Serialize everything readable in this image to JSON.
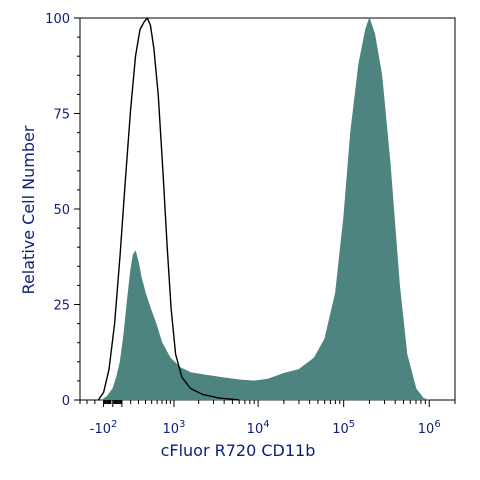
{
  "chart_data": {
    "type": "area",
    "xlabel": "cFluor R720 CD11b",
    "ylabel": "Relative Cell Number",
    "x_scale": "biexponential",
    "xlim": [
      -400,
      2000000
    ],
    "ylim": [
      0,
      100
    ],
    "y_ticks": [
      "0",
      "25",
      "50",
      "75",
      "100"
    ],
    "x_ticks": [
      {
        "base": "-10",
        "exp": "2",
        "value": -100
      },
      {
        "base": "10",
        "exp": "3",
        "value": 1000
      },
      {
        "base": "10",
        "exp": "4",
        "value": 10000
      },
      {
        "base": "10",
        "exp": "5",
        "value": 100000
      },
      {
        "base": "10",
        "exp": "6",
        "value": 1000000
      }
    ],
    "series": [
      {
        "style": "filled",
        "color": "#4e8480",
        "points": [
          [
            -120,
            0
          ],
          [
            -60,
            1
          ],
          [
            0,
            3
          ],
          [
            40,
            6
          ],
          [
            80,
            10
          ],
          [
            120,
            17
          ],
          [
            160,
            26
          ],
          [
            200,
            34
          ],
          [
            230,
            38
          ],
          [
            260,
            39
          ],
          [
            300,
            36
          ],
          [
            340,
            32
          ],
          [
            400,
            28
          ],
          [
            480,
            24
          ],
          [
            580,
            20
          ],
          [
            700,
            15
          ],
          [
            900,
            11
          ],
          [
            1200,
            8.5
          ],
          [
            1600,
            7.2
          ],
          [
            2500,
            6.5
          ],
          [
            4000,
            5.8
          ],
          [
            6000,
            5.3
          ],
          [
            9000,
            5.0
          ],
          [
            13000,
            5.5
          ],
          [
            20000,
            7
          ],
          [
            30000,
            8
          ],
          [
            45000,
            11
          ],
          [
            60000,
            16
          ],
          [
            80000,
            28
          ],
          [
            100000,
            48
          ],
          [
            120000,
            70
          ],
          [
            150000,
            88
          ],
          [
            180000,
            97
          ],
          [
            200000,
            100
          ],
          [
            230000,
            96
          ],
          [
            280000,
            85
          ],
          [
            350000,
            62
          ],
          [
            450000,
            30
          ],
          [
            550000,
            12
          ],
          [
            700000,
            3
          ],
          [
            850000,
            0.5
          ],
          [
            1000000,
            0
          ]
        ]
      },
      {
        "style": "outline",
        "color": "#000000",
        "points": [
          [
            -160,
            0
          ],
          [
            -100,
            2
          ],
          [
            -40,
            8
          ],
          [
            20,
            20
          ],
          [
            80,
            38
          ],
          [
            140,
            58
          ],
          [
            200,
            76
          ],
          [
            260,
            90
          ],
          [
            320,
            97
          ],
          [
            380,
            99
          ],
          [
            430,
            100
          ],
          [
            480,
            98
          ],
          [
            540,
            92
          ],
          [
            620,
            80
          ],
          [
            720,
            60
          ],
          [
            820,
            40
          ],
          [
            920,
            24
          ],
          [
            1050,
            12
          ],
          [
            1250,
            6
          ],
          [
            1600,
            3
          ],
          [
            2200,
            1.5
          ],
          [
            3500,
            0.5
          ],
          [
            6000,
            0
          ]
        ]
      }
    ]
  }
}
